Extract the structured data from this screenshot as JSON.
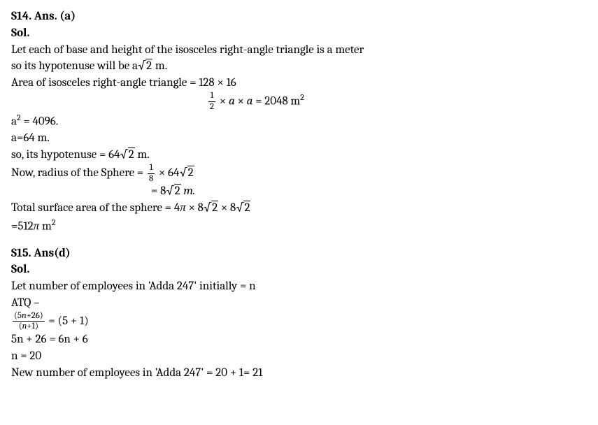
{
  "s14": {
    "header": "S14. Ans. (a)",
    "sol_label": "Sol.",
    "l1": "Let each of base and height of the isosceles right-angle triangle is a meter",
    "l2a": "so its hypotenuse will be a",
    "l2b": " m.",
    "sqrt2": "2",
    "l3": "Area of isosceles right-angle triangle = 128 × 16",
    "eq1_frac_num": "1",
    "eq1_frac_den": "2",
    "eq1_mid": " × ",
    "eq1_a": "a",
    "eq1_rhs": "  = 2048 m",
    "eq1_sup": "2",
    "l4a": "a",
    "l4sup": "2",
    "l4b": " = 4096.",
    "l5": "a=64 m.",
    "l6a": "so, its hypotenuse = 64",
    "l6b": " m.",
    "l7a": "Now, radius of the Sphere = ",
    "l7_frac_num": "1",
    "l7_frac_den": "8",
    "l7b": " × 64",
    "eq2a": "= 8",
    "eq2b": " ",
    "eq2m": "m.",
    "l8a": "Total surface area of the sphere = 4",
    "pi": "π",
    "l8b": " × 8",
    "l8c": "  × 8",
    "l9a": "=512",
    "l9b": " m",
    "l9sup": "2"
  },
  "s15": {
    "header": "S15. Ans(d)",
    "sol_label": "Sol.",
    "l1": "Let number of employees in 'Adda 247' initially = n",
    "l2": "ATQ –",
    "frac_num_a": "(5",
    "frac_num_n": "n",
    "frac_num_b": "+26)",
    "frac_den_a": "(",
    "frac_den_n": "n",
    "frac_den_b": "+1)",
    "eq_rhs": " = (5 + 1)",
    "l4": "5n + 26 = 6n + 6",
    "l5": "n = 20",
    "l6": "New number of employees in 'Adda 247' = 20 + 1= 21"
  }
}
